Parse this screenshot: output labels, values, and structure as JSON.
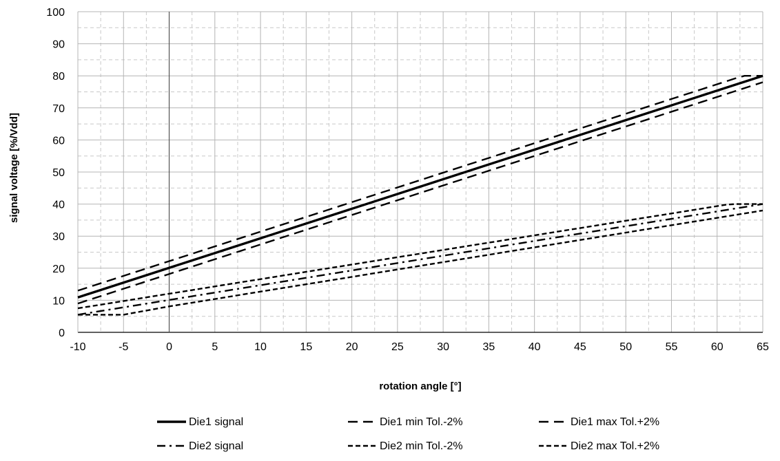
{
  "chart_data": {
    "type": "line",
    "title": "",
    "xlabel": "rotation angle [°]",
    "ylabel": "signal voltage [%/Vdd]",
    "xlim": [
      -10,
      65
    ],
    "ylim": [
      0,
      100
    ],
    "x_ticks": [
      -10,
      -5,
      0,
      5,
      10,
      15,
      20,
      25,
      30,
      35,
      40,
      45,
      50,
      55,
      60,
      65
    ],
    "y_ticks": [
      0,
      10,
      20,
      30,
      40,
      50,
      60,
      70,
      80,
      90,
      100
    ],
    "x_tick_labels": [
      "-10",
      "-5",
      "0",
      "5",
      "10",
      "15",
      "20",
      "25",
      "30",
      "35",
      "40",
      "45",
      "50",
      "55",
      "60",
      "65"
    ],
    "y_tick_labels": [
      "0",
      "10",
      "20",
      "30",
      "40",
      "50",
      "60",
      "70",
      "80",
      "90",
      "100"
    ],
    "grid": "major solid, minor dashed",
    "legend_position": "bottom",
    "series": [
      {
        "name": "Die1 signal",
        "style": "solid",
        "color": "#000000",
        "x": [
          -10,
          65
        ],
        "y": [
          10.9,
          80.0
        ]
      },
      {
        "name": "Die1 min Tol.-2%",
        "style": "dash",
        "color": "#000000",
        "x": [
          -10,
          65
        ],
        "y": [
          9.0,
          78.0
        ]
      },
      {
        "name": "Die1 max Tol.+2%",
        "style": "dash",
        "color": "#000000",
        "x": [
          -10,
          62,
          63,
          64,
          65
        ],
        "y": [
          13.0,
          79.2,
          80.0,
          80.0,
          80.0
        ]
      },
      {
        "name": "Die2 signal",
        "style": "dashdot",
        "color": "#000000",
        "x": [
          -10,
          65
        ],
        "y": [
          5.5,
          40.0
        ]
      },
      {
        "name": "Die2 min Tol.-2%",
        "style": "shortdash",
        "color": "#000000",
        "x": [
          -10,
          -5,
          0,
          65
        ],
        "y": [
          5.5,
          5.5,
          8.1,
          38.0
        ]
      },
      {
        "name": "Die2 max Tol.+2%",
        "style": "shortdash",
        "color": "#000000",
        "x": [
          -10,
          61,
          62,
          63,
          65
        ],
        "y": [
          7.5,
          39.8,
          40.0,
          40.0,
          40.0
        ]
      }
    ]
  }
}
